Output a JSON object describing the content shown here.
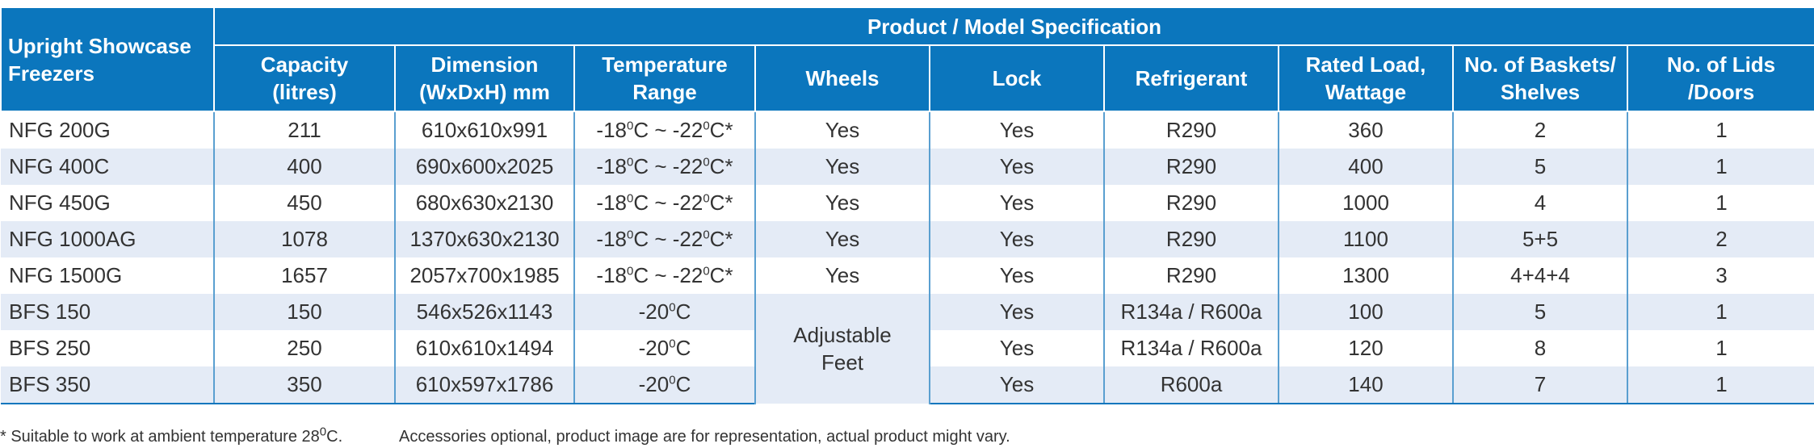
{
  "table": {
    "corner_label": [
      "Upright Showcase",
      "Freezers"
    ],
    "group_header": "Product / Model Specification",
    "columns": [
      [
        "Capacity",
        "(litres)"
      ],
      [
        "Dimension",
        "(WxDxH) mm"
      ],
      [
        "Temperature",
        "Range"
      ],
      [
        "Wheels"
      ],
      [
        "Lock"
      ],
      [
        "Refrigerant"
      ],
      [
        "Rated Load,",
        "Wattage"
      ],
      [
        "No. of Baskets/",
        "Shelves"
      ],
      [
        "No. of Lids",
        "/Doors"
      ]
    ],
    "rows": [
      {
        "model": "NFG 200G",
        "capacity": "211",
        "dimension": "610x610x991",
        "temp": "-18ºC ~ -22ºC*",
        "wheels": "Yes",
        "lock": "Yes",
        "refrigerant": "R290",
        "wattage": "360",
        "shelves": "2",
        "doors": "1"
      },
      {
        "model": "NFG 400C",
        "capacity": "400",
        "dimension": "690x600x2025",
        "temp": "-18ºC ~ -22ºC*",
        "wheels": "Yes",
        "lock": "Yes",
        "refrigerant": "R290",
        "wattage": "400",
        "shelves": "5",
        "doors": "1"
      },
      {
        "model": "NFG 450G",
        "capacity": "450",
        "dimension": "680x630x2130",
        "temp": "-18ºC ~ -22ºC*",
        "wheels": "Yes",
        "lock": "Yes",
        "refrigerant": "R290",
        "wattage": "1000",
        "shelves": "4",
        "doors": "1"
      },
      {
        "model": "NFG 1000AG",
        "capacity": "1078",
        "dimension": "1370x630x2130",
        "temp": "-18ºC ~ -22ºC*",
        "wheels": "Yes",
        "lock": "Yes",
        "refrigerant": "R290",
        "wattage": "1100",
        "shelves": "5+5",
        "doors": "2"
      },
      {
        "model": "NFG 1500G",
        "capacity": "1657",
        "dimension": "2057x700x1985",
        "temp": "-18ºC ~ -22ºC*",
        "wheels": "Yes",
        "lock": "Yes",
        "refrigerant": "R290",
        "wattage": "1300",
        "shelves": "4+4+4",
        "doors": "3"
      },
      {
        "model": "BFS 150",
        "capacity": "150",
        "dimension": "546x526x1143",
        "temp": "-20ºC",
        "wheels": "",
        "lock": "Yes",
        "refrigerant": "R134a / R600a",
        "wattage": "100",
        "shelves": "5",
        "doors": "1"
      },
      {
        "model": "BFS 250",
        "capacity": "250",
        "dimension": "610x610x1494",
        "temp": "-20ºC",
        "wheels": "",
        "lock": "Yes",
        "refrigerant": "R134a / R600a",
        "wattage": "120",
        "shelves": "8",
        "doors": "1"
      },
      {
        "model": "BFS 350",
        "capacity": "350",
        "dimension": "610x597x1786",
        "temp": "-20ºC",
        "wheels": "",
        "lock": "Yes",
        "refrigerant": "R600a",
        "wattage": "140",
        "shelves": "7",
        "doors": "1"
      }
    ],
    "merged_wheels_label": [
      "Adjustable",
      "Feet"
    ]
  },
  "footnotes": {
    "note1": "* Suitable to work at ambient temperature 28ºC.",
    "note2": "Accessories optional, product image are for representation, actual product might vary."
  },
  "colors": {
    "header_blue": "#0b76bd",
    "row_alt": "#e4ebf6",
    "divider": "#5a9fd0"
  }
}
